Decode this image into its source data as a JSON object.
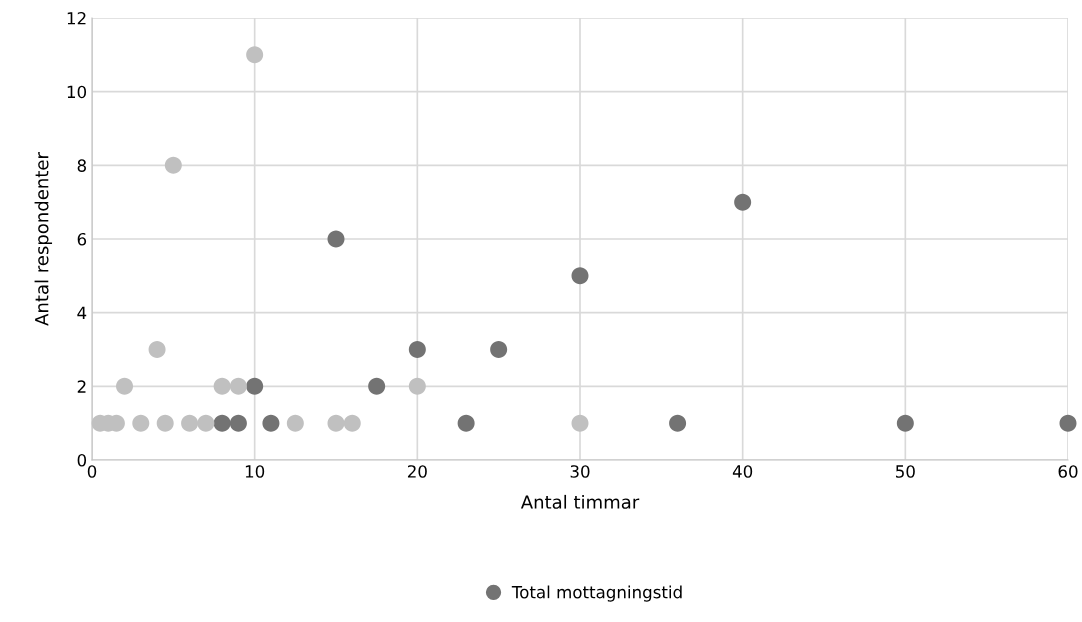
{
  "chart_data": {
    "type": "scatter",
    "xlabel": "Antal timmar",
    "ylabel": "Antal respondenter",
    "xlim": [
      0,
      60
    ],
    "xticks": [
      0,
      10,
      20,
      30,
      40,
      50,
      60
    ],
    "ylim": [
      0,
      12
    ],
    "yticks": [
      0,
      2,
      4,
      6,
      8,
      10,
      12
    ],
    "grid": true,
    "legend": "bottom",
    "marker": "circle",
    "series": [
      {
        "name": "Total mottagningstid",
        "color": "#737373",
        "x": [
          8,
          9,
          10,
          11,
          15,
          17.5,
          20,
          23,
          25,
          30,
          36,
          40,
          50,
          60
        ],
        "values": [
          1,
          1,
          2,
          1,
          6,
          2,
          3,
          1,
          3,
          5,
          1,
          7,
          1,
          1
        ]
      },
      {
        "color": "#c0c0c0",
        "x": [
          0.5,
          1,
          1.5,
          2,
          3,
          4,
          4.5,
          5,
          6,
          7,
          8,
          9,
          10,
          12.5,
          15,
          16,
          20,
          30
        ],
        "values": [
          1,
          1,
          1,
          2,
          1,
          3,
          1,
          8,
          1,
          1,
          2,
          2,
          11,
          1,
          1,
          1,
          2,
          1
        ]
      }
    ]
  }
}
